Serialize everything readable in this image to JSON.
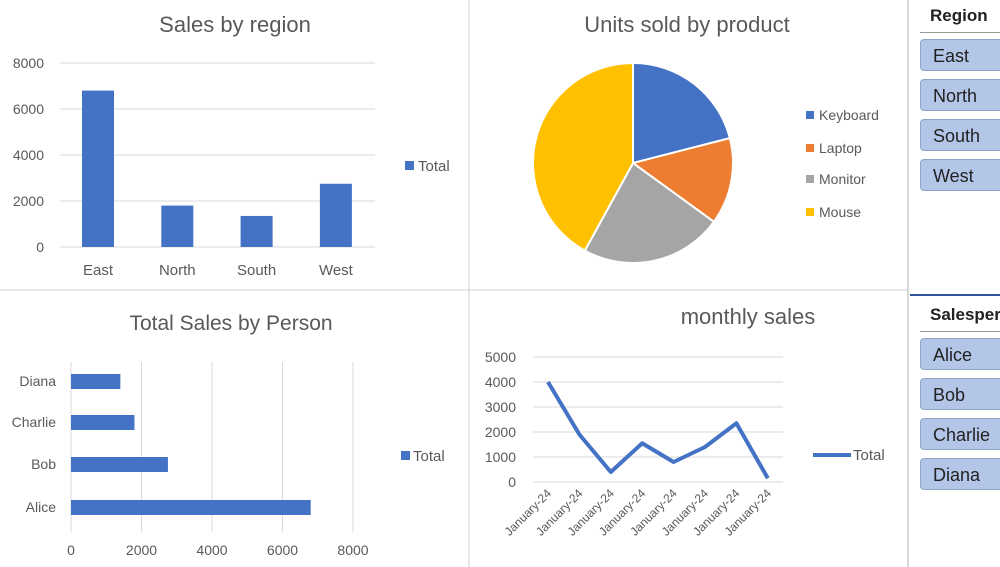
{
  "colors": {
    "bar": "#4472c4",
    "grid": "#d9d9d9",
    "slicer_button": "#b4c6e7"
  },
  "chart_data": [
    {
      "type": "bar",
      "title": "Sales by region",
      "categories": [
        "East",
        "North",
        "South",
        "West"
      ],
      "series": [
        {
          "name": "Total",
          "values": [
            6800,
            1800,
            1350,
            2750
          ]
        }
      ],
      "ylim": [
        0,
        8000
      ],
      "yticks": [
        "0",
        "2000",
        "4000",
        "6000",
        "8000"
      ],
      "grid": true,
      "legend": "right"
    },
    {
      "type": "pie",
      "title": "Units sold by product",
      "categories": [
        "Keyboard",
        "Laptop",
        "Monitor",
        "Mouse"
      ],
      "values_percent": [
        21,
        14,
        23,
        42
      ],
      "colors": [
        "#4472c4",
        "#ed7d31",
        "#a5a5a5",
        "#ffc000"
      ],
      "legend": "right"
    },
    {
      "type": "bar",
      "orientation": "horizontal",
      "title": "Total Sales by Person",
      "categories": [
        "Alice",
        "Bob",
        "Charlie",
        "Diana"
      ],
      "series": [
        {
          "name": "Total",
          "values": [
            6800,
            2750,
            1800,
            1400
          ]
        }
      ],
      "xlim": [
        0,
        8000
      ],
      "xticks": [
        "0",
        "2000",
        "4000",
        "6000",
        "8000"
      ],
      "grid": true,
      "legend": "right"
    },
    {
      "type": "line",
      "title": "monthly sales",
      "categories": [
        "January-24",
        "January-24",
        "January-24",
        "January-24",
        "January-24",
        "January-24",
        "January-24",
        "January-24"
      ],
      "series": [
        {
          "name": "Total",
          "values": [
            4000,
            1900,
            400,
            1550,
            800,
            1400,
            2350,
            150
          ]
        }
      ],
      "ylim": [
        0,
        5000
      ],
      "yticks": [
        "0",
        "1000",
        "2000",
        "3000",
        "4000",
        "5000"
      ],
      "grid": true,
      "legend": "right"
    }
  ],
  "slicers": {
    "region": {
      "title": "Region",
      "items": [
        "East",
        "North",
        "South",
        "West"
      ]
    },
    "salesperson": {
      "title": "Salesperson",
      "items": [
        "Alice",
        "Bob",
        "Charlie",
        "Diana"
      ]
    }
  }
}
